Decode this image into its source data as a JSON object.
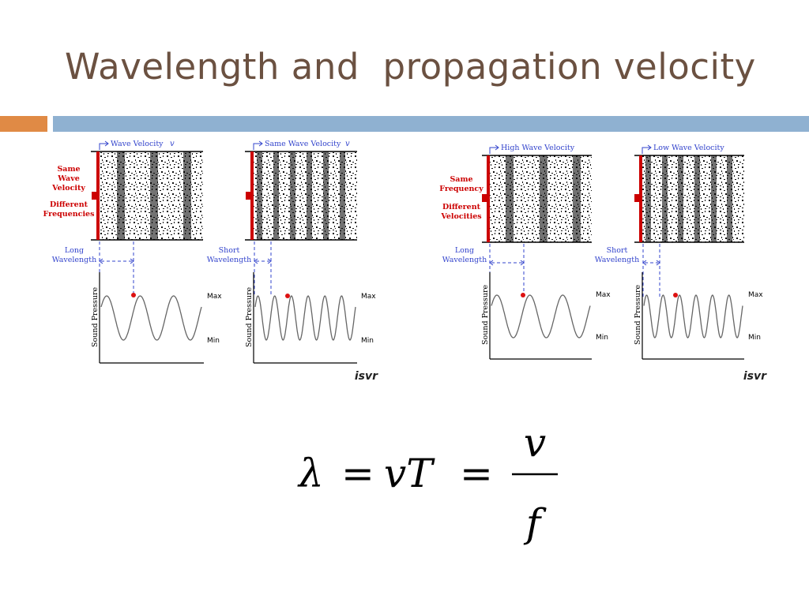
{
  "title": "Wavelength and  propagation velocity",
  "colors": {
    "title": "#6b5141",
    "accent_orange": "#e08a45",
    "accent_blue": "#8fb1d1",
    "label_red": "#cc0000",
    "label_blue": "#3344cc"
  },
  "left_figure": {
    "side_label_top": [
      "Same",
      "Wave",
      "Velocity"
    ],
    "side_label_bottom": [
      "Different",
      "Frequencies"
    ],
    "panel1": {
      "velocity_label": "Wave Velocity",
      "velocity_symbol": "v",
      "wavelength_label": [
        "Long",
        "Wavelength"
      ],
      "cycles": 3
    },
    "panel2": {
      "velocity_label": "Same Wave Velocity",
      "velocity_symbol": "v",
      "wavelength_label": [
        "Short",
        "Wavelength"
      ],
      "cycles": 6
    },
    "y_axis": "Sound Pressure",
    "max": "Max",
    "min": "Min",
    "credit": "isvr"
  },
  "right_figure": {
    "side_label_top": [
      "Same",
      "Frequency"
    ],
    "side_label_bottom": [
      "Different",
      "Velocities"
    ],
    "panel1": {
      "velocity_label": "High Wave Velocity",
      "wavelength_label": [
        "Long",
        "Wavelength"
      ],
      "cycles": 3
    },
    "panel2": {
      "velocity_label": "Low Wave Velocity",
      "wavelength_label": [
        "Short",
        "Wavelength"
      ],
      "cycles": 6
    },
    "y_axis": "Sound Pressure",
    "max": "Max",
    "min": "Min",
    "credit": "isvr"
  },
  "equation": {
    "lambda": "λ",
    "eq1": "=",
    "vT": "vT",
    "eq2": "=",
    "num": "v",
    "den": "f"
  }
}
